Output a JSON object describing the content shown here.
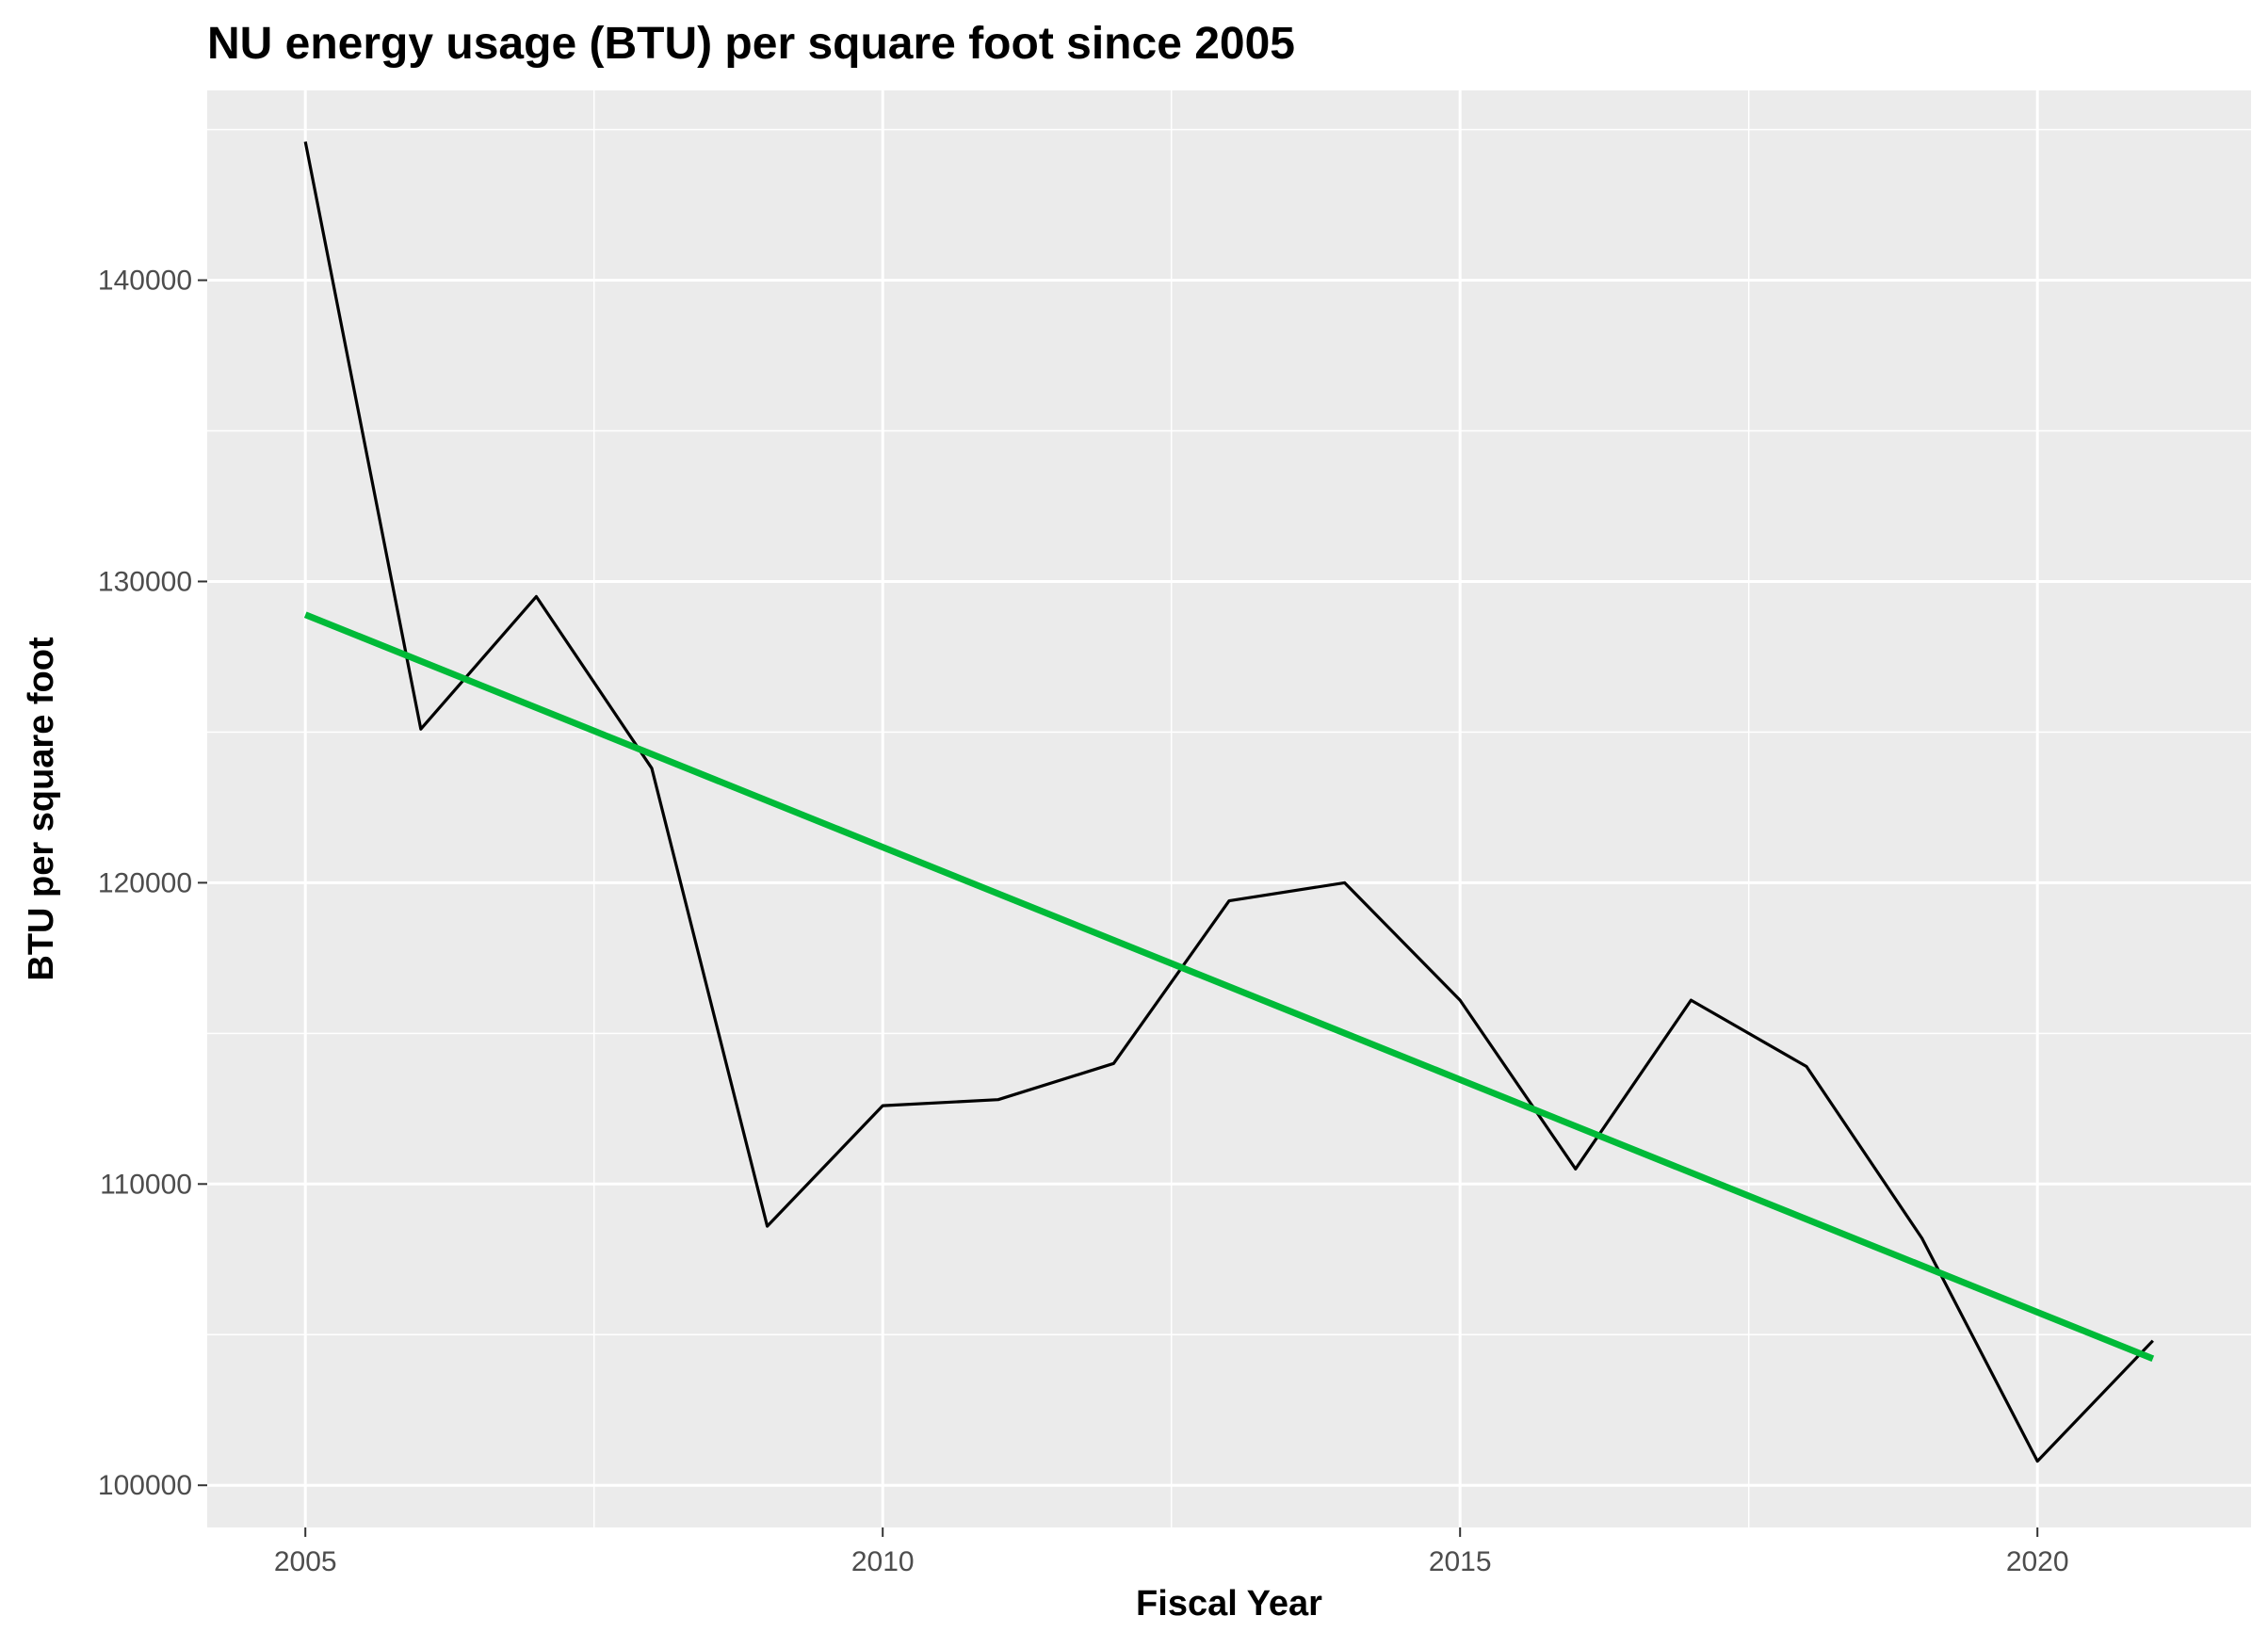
{
  "chart_data": {
    "type": "line",
    "title": "NU energy usage (BTU) per square foot since 2005",
    "xlabel": "Fiscal Year",
    "ylabel": "BTU per square foot",
    "xlim": [
      2004.15,
      2021.85
    ],
    "ylim": [
      98600,
      146300
    ],
    "x_ticks": [
      2005,
      2010,
      2015,
      2020
    ],
    "x_tick_labels": [
      "2005",
      "2010",
      "2015",
      "2020"
    ],
    "y_ticks": [
      100000,
      110000,
      120000,
      130000,
      140000
    ],
    "y_tick_labels": [
      "100000",
      "110000",
      "120000",
      "130000",
      "140000"
    ],
    "grid": true,
    "background": "#ebebeb",
    "series": [
      {
        "kind": "observed",
        "color": "#000000",
        "x": [
          2005,
          2006,
          2007,
          2008,
          2009,
          2010,
          2011,
          2012,
          2013,
          2014,
          2015,
          2016,
          2017,
          2018,
          2019,
          2020,
          2021
        ],
        "values": [
          144600,
          125100,
          129500,
          123800,
          108600,
          112600,
          112800,
          114000,
          119400,
          120000,
          116100,
          110500,
          116100,
          113900,
          108200,
          100800,
          104800
        ]
      },
      {
        "kind": "linear-trend",
        "color": "#00ba38",
        "x": [
          2005,
          2021
        ],
        "values": [
          128900,
          104200
        ]
      }
    ]
  }
}
